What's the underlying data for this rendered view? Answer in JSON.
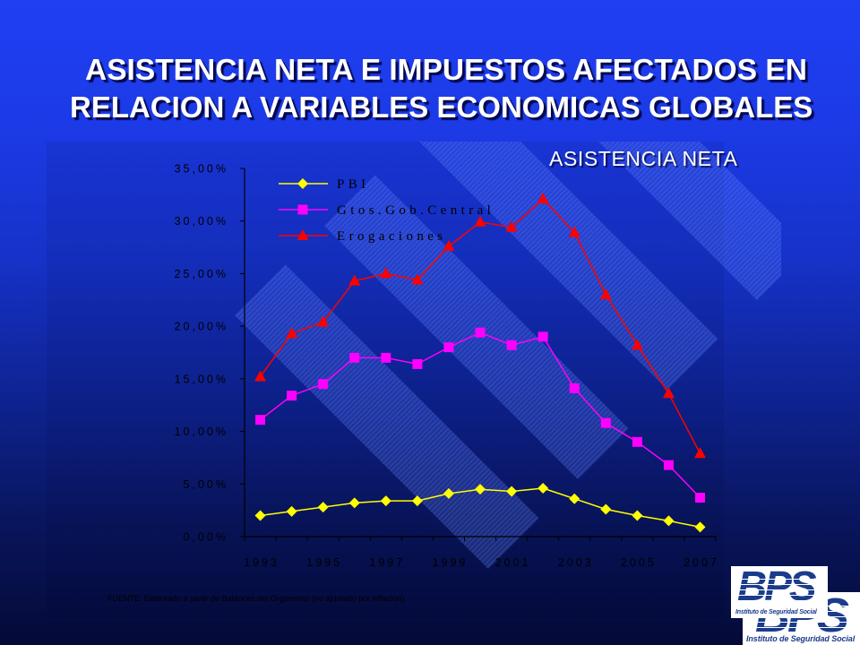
{
  "slide": {
    "title_line1": "ASISTENCIA NETA E IMPUESTOS AFECTADOS EN",
    "title_line2": "RELACION A VARIABLES ECONOMICAS GLOBALES",
    "source_note": "FUENTE: Elaborado a partir de Balances del Organismo (no ajustado por inflación)"
  },
  "logo": {
    "mark": "BPS",
    "caption": "Instituto de Seguridad Social"
  },
  "colors": {
    "background_top": "#1f3ff3",
    "background_bottom": "#040a36",
    "title": "#ffffff",
    "axis": "#000000",
    "stripe": "#5a7cff",
    "logo_blue": "#1b3c8c"
  },
  "chart_data": {
    "type": "line",
    "title": "ASISTENCIA NETA",
    "x": [
      1993,
      1994,
      1995,
      1996,
      1997,
      1998,
      1999,
      2000,
      2001,
      2002,
      2003,
      2004,
      2005,
      2006,
      2007
    ],
    "xticks": [
      {
        "value": 1993,
        "label": "1993"
      },
      {
        "value": 1995,
        "label": "1995"
      },
      {
        "value": 1997,
        "label": "1997"
      },
      {
        "value": 1999,
        "label": "1999"
      },
      {
        "value": 2001,
        "label": "2001"
      },
      {
        "value": 2003,
        "label": "2003"
      },
      {
        "value": 2005,
        "label": "2005"
      },
      {
        "value": 2007,
        "label": "2007"
      }
    ],
    "ylim": [
      0,
      35
    ],
    "yticks": [
      {
        "value": 0,
        "label": "0,00%"
      },
      {
        "value": 5,
        "label": "5,00%"
      },
      {
        "value": 10,
        "label": "10,00%"
      },
      {
        "value": 15,
        "label": "15,00%"
      },
      {
        "value": 20,
        "label": "20,00%"
      },
      {
        "value": 25,
        "label": "25,00%"
      },
      {
        "value": 30,
        "label": "30,00%"
      },
      {
        "value": 35,
        "label": "35,00%"
      }
    ],
    "grid": false,
    "legend_position": "top-left",
    "series": [
      {
        "name": "PBI",
        "color": "#ffff00",
        "marker": "diamond",
        "values": [
          2.0,
          2.4,
          2.8,
          3.2,
          3.4,
          3.4,
          4.1,
          4.5,
          4.3,
          4.6,
          3.6,
          2.6,
          2.0,
          1.5,
          0.9
        ]
      },
      {
        "name": "Gtos.Gob.Central",
        "color": "#ff00ff",
        "marker": "square",
        "values": [
          11.1,
          13.4,
          14.5,
          17.0,
          17.0,
          16.4,
          18.0,
          19.4,
          18.2,
          19.0,
          14.1,
          10.8,
          9.0,
          6.8,
          3.7
        ]
      },
      {
        "name": "Erogaciones",
        "color": "#ff0000",
        "marker": "triangle",
        "values": [
          15.2,
          19.3,
          20.4,
          24.3,
          25.0,
          24.4,
          27.6,
          29.9,
          29.4,
          32.1,
          28.9,
          23.0,
          18.2,
          13.6,
          7.9
        ]
      }
    ]
  }
}
